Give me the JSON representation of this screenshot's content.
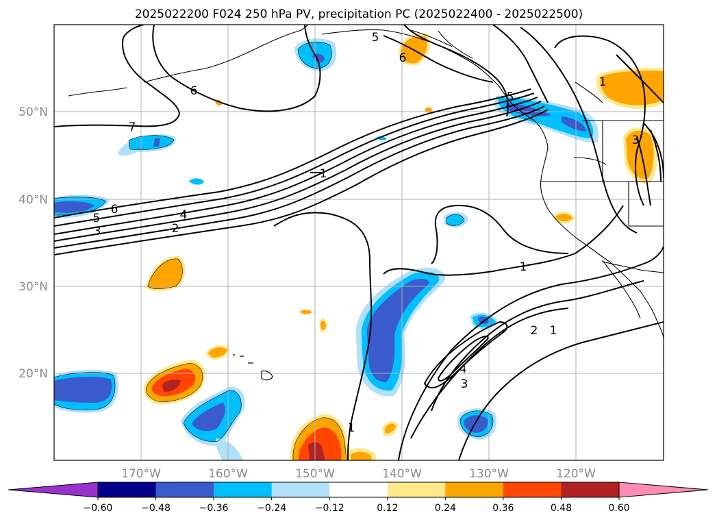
{
  "title": "2025022200 F024 250 hPa PV, precipitation PC (2025022400 - 2025022500)",
  "map": {
    "lat_labels": [
      "50°N",
      "40°N",
      "30°N",
      "20°N"
    ],
    "lon_labels": [
      "170°W",
      "160°W",
      "150°W",
      "140°W",
      "130°W",
      "120°W"
    ],
    "gridline_color": "#b0b0b0",
    "contour_labels": {
      "c5_top": "5",
      "c6_top": "6",
      "c6_left": "6",
      "c7": "7",
      "c1_mid": "1",
      "c6_band": "6",
      "c5_band": "5",
      "c4_band": "4",
      "c3_band": "3",
      "c2_band": "2",
      "c1_east": "1",
      "c2_se": "2",
      "c1_se": "1",
      "c4_se": "4",
      "c3_se": "3",
      "c1_south": "1",
      "c1_ne": "1",
      "c5_ne": "5",
      "c3_ne": "3"
    }
  },
  "colorbar": {
    "ticks": [
      "−0.60",
      "−0.48",
      "−0.36",
      "−0.24",
      "−0.12",
      "0.12",
      "0.24",
      "0.36",
      "0.48",
      "0.60"
    ],
    "colors": [
      "#9932cc",
      "#00008b",
      "#3a5bcc",
      "#00bfff",
      "#b0e0fa",
      "#ffffff",
      "#ffe88a",
      "#ffa500",
      "#ff4500",
      "#b22222",
      "#ff8cb4"
    ]
  }
}
